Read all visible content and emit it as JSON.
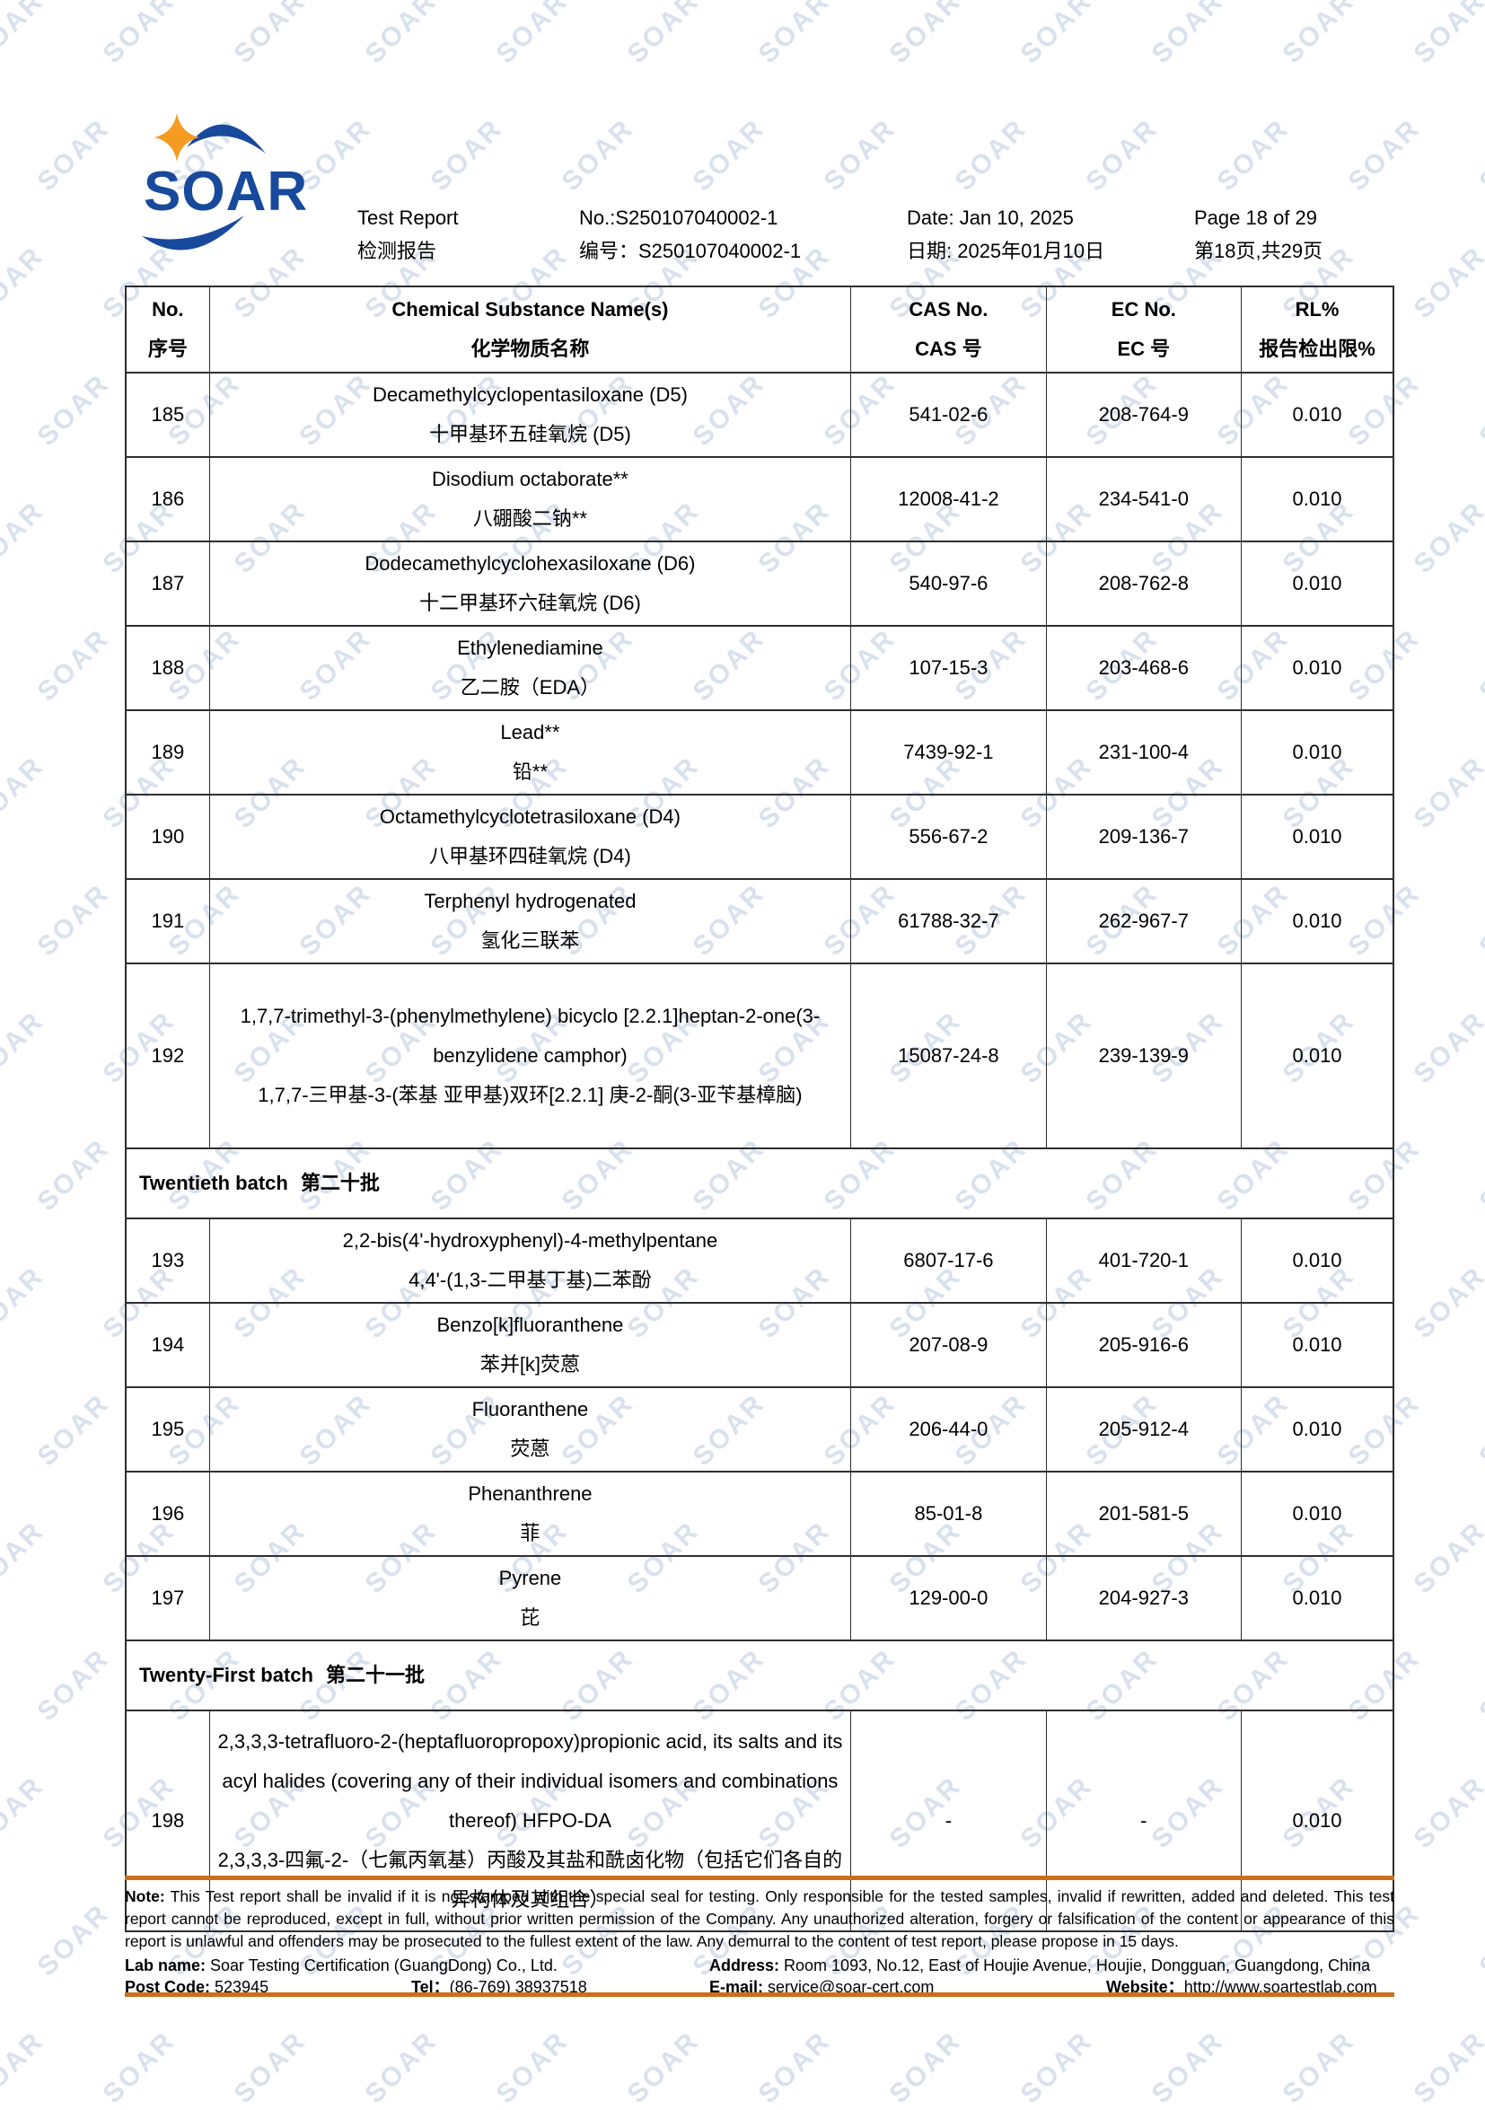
{
  "colors": {
    "logo_blue": "#17499c",
    "star_orange": "#f59b22",
    "accent_orange": "#c9701e",
    "watermark_blue": "#aabcd8"
  },
  "watermark": {
    "text": "SOAR"
  },
  "header": {
    "logo_text": "SOAR",
    "report_title_en": "Test Report",
    "report_title_zh": "检测报告",
    "report_no_en": "No.:S250107040002-1",
    "report_no_zh": "编号：S250107040002-1",
    "date_en": "Date: Jan 10, 2025",
    "date_zh": "日期: 2025年01月10日",
    "page_en": "Page 18 of 29",
    "page_zh": "第18页,共29页"
  },
  "table": {
    "columns": [
      {
        "en": "No.",
        "zh": "序号"
      },
      {
        "en": "Chemical Substance Name(s)",
        "zh": "化学物质名称"
      },
      {
        "en": "CAS No.",
        "zh": "CAS 号"
      },
      {
        "en": "EC No.",
        "zh": "EC 号"
      },
      {
        "en": "RL%",
        "zh": "报告检出限%"
      }
    ],
    "rows": [
      {
        "type": "substance",
        "no": "185",
        "name_en": "Decamethylcyclopentasiloxane (D5)",
        "name_zh": "十甲基环五硅氧烷  (D5)",
        "cas": "541-02-6",
        "ec": "208-764-9",
        "rl": "0.010"
      },
      {
        "type": "substance",
        "no": "186",
        "name_en": "Disodium octaborate**",
        "name_zh": "八硼酸二钠**",
        "cas": "12008-41-2",
        "ec": "234-541-0",
        "rl": "0.010"
      },
      {
        "type": "substance",
        "no": "187",
        "name_en": "Dodecamethylcyclohexasiloxane (D6)",
        "name_zh": "十二甲基环六硅氧烷 (D6)",
        "cas": "540-97-6",
        "ec": "208-762-8",
        "rl": "0.010"
      },
      {
        "type": "substance",
        "no": "188",
        "name_en": "Ethylenediamine",
        "name_zh": "乙二胺（EDA）",
        "cas": "107-15-3",
        "ec": "203-468-6",
        "rl": "0.010"
      },
      {
        "type": "substance",
        "no": "189",
        "name_en": "Lead**",
        "name_zh": "铅**",
        "cas": "7439-92-1",
        "ec": "231-100-4",
        "rl": "0.010"
      },
      {
        "type": "substance",
        "no": "190",
        "name_en": "Octamethylcyclotetrasiloxane (D4)",
        "name_zh": "八甲基环四硅氧烷 (D4)",
        "cas": "556-67-2",
        "ec": "209-136-7",
        "rl": "0.010"
      },
      {
        "type": "substance",
        "no": "191",
        "name_en": "Terphenyl hydrogenated",
        "name_zh": "氢化三联苯",
        "cas": "61788-32-7",
        "ec": "262-967-7",
        "rl": "0.010"
      },
      {
        "type": "substance",
        "no": "192",
        "name_en": "1,7,7-trimethyl-3-(phenylmethylene) bicyclo [2.2.1]heptan-2-one(3-benzylidene camphor)",
        "name_zh": "1,7,7-三甲基-3-(苯基 亚甲基)双环[2.2.1] 庚-2-酮(3-亚苄基樟脑)",
        "cas": "15087-24-8",
        "ec": "239-139-9",
        "rl": "0.010"
      },
      {
        "type": "batch",
        "batch_en": "Twentieth batch",
        "batch_zh": "第二十批"
      },
      {
        "type": "substance",
        "no": "193",
        "name_en": "2,2-bis(4'-hydroxyphenyl)-4-methylpentane",
        "name_zh": "4,4'-(1,3-二甲基丁基)二苯酚",
        "cas": "6807-17-6",
        "ec": "401-720-1",
        "rl": "0.010"
      },
      {
        "type": "substance",
        "no": "194",
        "name_en": "Benzo[k]fluoranthene",
        "name_zh": "苯并[k]荧蒽",
        "cas": "207-08-9",
        "ec": "205-916-6",
        "rl": "0.010"
      },
      {
        "type": "substance",
        "no": "195",
        "name_en": "Fluoranthene",
        "name_zh": "荧蒽",
        "cas": "206-44-0",
        "ec": "205-912-4",
        "rl": "0.010"
      },
      {
        "type": "substance",
        "no": "196",
        "name_en": "Phenanthrene",
        "name_zh": "菲",
        "cas": "85-01-8",
        "ec": "201-581-5",
        "rl": "0.010"
      },
      {
        "type": "substance",
        "no": "197",
        "name_en": "Pyrene",
        "name_zh": "芘",
        "cas": "129-00-0",
        "ec": "204-927-3",
        "rl": "0.010"
      },
      {
        "type": "batch",
        "batch_en": "Twenty-First batch",
        "batch_zh": "第二十一批"
      },
      {
        "type": "substance",
        "no": "198",
        "name_en": "2,3,3,3-tetrafluoro-2-(heptafluoropropoxy)propionic acid, its salts and its acyl halides (covering any of their individual isomers and combinations thereof) HFPO-DA",
        "name_zh": "2,3,3,3-四氟-2-（七氟丙氧基）丙酸及其盐和酰卤化物（包括它们各自的异构体及其组合）",
        "cas": "-",
        "ec": "-",
        "rl": "0.010"
      }
    ]
  },
  "footer": {
    "note_label": "Note:",
    "note_text": " This Test report shall be invalid if it is not stamped with the special seal for testing. Only responsible for the tested samples, invalid if rewritten, added and deleted. This test report cannot be reproduced, except in full, without prior written permission of the Company.  Any unauthorized alteration, forgery or falsification of the content or appearance of this report is unlawful and offenders may be prosecuted to the fullest extent of the law. Any demurral to the content of test report, please propose in 15 days.",
    "lab_name_label": "Lab name:",
    "lab_name": " Soar Testing Certification (GuangDong) Co., Ltd.",
    "address_label": "Address:",
    "address": " Room 1093, No.12, East of Houjie Avenue, Houjie, Dongguan, Guangdong, China",
    "post_code_label": "Post Code:",
    "post_code": " 523945",
    "tel_label": "Tel：",
    "tel": "(86-769) 38937518",
    "email_label": "E-mail:",
    "email": " service@soar-cert.com",
    "website_label": "Website：",
    "website": "http://www.soartestlab.com"
  }
}
